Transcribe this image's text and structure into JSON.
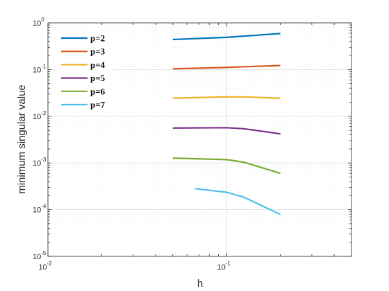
{
  "chart_data": {
    "type": "line",
    "xlabel": "h",
    "ylabel": "minimum singular value",
    "xscale": "log",
    "yscale": "log",
    "xlim": [
      0.01,
      0.5
    ],
    "ylim": [
      1e-05,
      1
    ],
    "grid": true,
    "minor_grid": true,
    "legend_position": "top-left",
    "x_ticks": [
      {
        "base": "10",
        "exp": "-2",
        "value": 0.01
      },
      {
        "base": "10",
        "exp": "-1",
        "value": 0.1
      }
    ],
    "y_ticks": [
      {
        "base": "10",
        "exp": "0",
        "value": 1
      },
      {
        "base": "10",
        "exp": "-1",
        "value": 0.1
      },
      {
        "base": "10",
        "exp": "-2",
        "value": 0.01
      },
      {
        "base": "10",
        "exp": "-3",
        "value": 0.001
      },
      {
        "base": "10",
        "exp": "-4",
        "value": 0.0001
      },
      {
        "base": "10",
        "exp": "-5",
        "value": 1e-05
      }
    ],
    "series": [
      {
        "name": "p=2",
        "color": "#0072BD",
        "x": [
          0.05,
          0.1,
          0.125,
          0.2
        ],
        "y": [
          0.44,
          0.49,
          0.52,
          0.59
        ]
      },
      {
        "name": "p=3",
        "color": "#D95319",
        "x": [
          0.05,
          0.1,
          0.125,
          0.2
        ],
        "y": [
          0.104,
          0.111,
          0.115,
          0.122
        ]
      },
      {
        "name": "p=4",
        "color": "#EDB120",
        "x": [
          0.05,
          0.1,
          0.125,
          0.2
        ],
        "y": [
          0.0245,
          0.026,
          0.026,
          0.0242
        ]
      },
      {
        "name": "p=5",
        "color": "#7E2F8E",
        "x": [
          0.05,
          0.1,
          0.125,
          0.2
        ],
        "y": [
          0.0056,
          0.0057,
          0.0054,
          0.0042
        ]
      },
      {
        "name": "p=6",
        "color": "#77AC30",
        "x": [
          0.05,
          0.1,
          0.125,
          0.2
        ],
        "y": [
          0.00127,
          0.00118,
          0.00104,
          0.0006
        ]
      },
      {
        "name": "p=7",
        "color": "#4DBEEE",
        "x": [
          0.0667,
          0.1,
          0.125,
          0.2
        ],
        "y": [
          0.000282,
          0.000236,
          0.000185,
          7.9e-05
        ]
      }
    ]
  }
}
